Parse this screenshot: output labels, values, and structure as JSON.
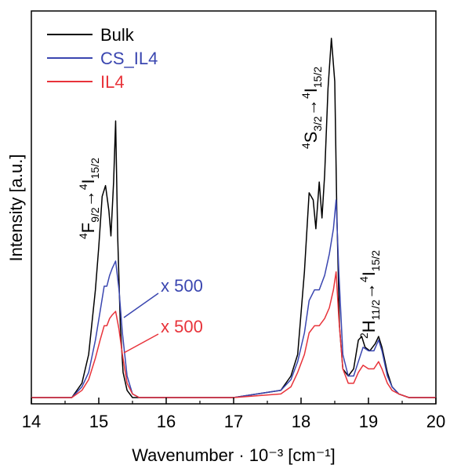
{
  "chart_data": {
    "type": "line",
    "title": "",
    "xlabel": "Wavenumber · 10⁻³ [cm⁻¹]",
    "ylabel": "Intensity [a.u.]",
    "xlim": [
      14,
      20
    ],
    "ylim": [
      0,
      1.05
    ],
    "xticks": [
      "14",
      "15",
      "16",
      "17",
      "18",
      "19",
      "20"
    ],
    "legend_position": "top-left",
    "series": [
      {
        "name": "Bulk",
        "color": "#000000",
        "x": [
          14.0,
          14.6,
          14.75,
          14.85,
          14.95,
          15.0,
          15.05,
          15.1,
          15.15,
          15.18,
          15.22,
          15.25,
          15.28,
          15.32,
          15.36,
          15.42,
          15.5,
          15.6,
          16.0,
          17.0,
          17.7,
          17.85,
          17.95,
          18.05,
          18.12,
          18.18,
          18.22,
          18.27,
          18.31,
          18.35,
          18.4,
          18.45,
          18.5,
          18.53,
          18.57,
          18.62,
          18.7,
          18.78,
          18.85,
          18.9,
          18.95,
          19.02,
          19.1,
          19.15,
          19.2,
          19.28,
          19.35,
          19.45,
          19.6,
          20.0
        ],
        "values": [
          0.0,
          0.0,
          0.04,
          0.12,
          0.3,
          0.42,
          0.56,
          0.59,
          0.52,
          0.45,
          0.6,
          0.77,
          0.45,
          0.2,
          0.07,
          0.02,
          0.0,
          0.0,
          0.0,
          0.0,
          0.02,
          0.06,
          0.12,
          0.35,
          0.57,
          0.55,
          0.47,
          0.6,
          0.5,
          0.62,
          0.86,
          1.0,
          0.88,
          0.52,
          0.2,
          0.08,
          0.06,
          0.08,
          0.16,
          0.17,
          0.14,
          0.13,
          0.15,
          0.17,
          0.14,
          0.07,
          0.03,
          0.01,
          0.0,
          0.0
        ]
      },
      {
        "name": "CS_IL4",
        "color": "#3a46b0",
        "x": [
          14.0,
          14.6,
          14.75,
          14.85,
          14.95,
          15.02,
          15.08,
          15.12,
          15.16,
          15.2,
          15.25,
          15.3,
          15.35,
          15.42,
          15.5,
          15.6,
          16.0,
          17.0,
          17.7,
          17.85,
          17.95,
          18.05,
          18.12,
          18.2,
          18.27,
          18.35,
          18.42,
          18.48,
          18.52,
          18.56,
          18.62,
          18.7,
          18.78,
          18.85,
          18.92,
          19.0,
          19.08,
          19.15,
          19.2,
          19.28,
          19.35,
          19.45,
          19.6,
          20.0
        ],
        "values": [
          0.0,
          0.0,
          0.03,
          0.07,
          0.16,
          0.24,
          0.31,
          0.31,
          0.34,
          0.36,
          0.38,
          0.3,
          0.18,
          0.06,
          0.01,
          0.0,
          0.0,
          0.0,
          0.02,
          0.05,
          0.1,
          0.18,
          0.27,
          0.3,
          0.3,
          0.34,
          0.4,
          0.47,
          0.55,
          0.35,
          0.12,
          0.06,
          0.06,
          0.1,
          0.14,
          0.13,
          0.13,
          0.16,
          0.13,
          0.06,
          0.03,
          0.01,
          0.0,
          0.0
        ]
      },
      {
        "name": "IL4",
        "color": "#e8333a",
        "x": [
          14.0,
          14.6,
          14.75,
          14.85,
          14.95,
          15.02,
          15.08,
          15.12,
          15.16,
          15.2,
          15.25,
          15.3,
          15.35,
          15.42,
          15.5,
          15.6,
          16.0,
          17.0,
          17.7,
          17.85,
          17.95,
          18.05,
          18.12,
          18.2,
          18.27,
          18.35,
          18.42,
          18.48,
          18.52,
          18.56,
          18.62,
          18.7,
          18.78,
          18.85,
          18.92,
          19.0,
          19.08,
          19.15,
          19.2,
          19.28,
          19.35,
          19.45,
          19.6,
          20.0
        ],
        "values": [
          0.0,
          0.0,
          0.02,
          0.05,
          0.11,
          0.16,
          0.2,
          0.2,
          0.22,
          0.23,
          0.24,
          0.19,
          0.12,
          0.04,
          0.01,
          0.0,
          0.0,
          0.0,
          0.01,
          0.03,
          0.07,
          0.12,
          0.18,
          0.2,
          0.2,
          0.22,
          0.25,
          0.3,
          0.35,
          0.22,
          0.08,
          0.04,
          0.04,
          0.07,
          0.09,
          0.08,
          0.08,
          0.1,
          0.08,
          0.04,
          0.02,
          0.01,
          0.0,
          0.0
        ]
      }
    ],
    "annotations": [
      {
        "label": "x 500",
        "color": "#3a46b0",
        "x": 15.4,
        "y": 0.35
      },
      {
        "label": "x 500",
        "color": "#e8333a",
        "x": 15.4,
        "y": 0.22
      },
      {
        "main1": "F",
        "sup1": "4",
        "sub1": "9/2",
        "arrow": "→",
        "main2": "I",
        "sup2": "4",
        "sub2": "15/2"
      },
      {
        "main1": "S",
        "sup1": "4",
        "sub1": "3/2",
        "arrow": "→",
        "main2": "I",
        "sup2": "4",
        "sub2": "15/2"
      },
      {
        "main1": "H",
        "sup1": "2",
        "sub1": "11/2",
        "arrow": "→",
        "main2": "I",
        "sup2": "4",
        "sub2": "15/2"
      }
    ]
  }
}
